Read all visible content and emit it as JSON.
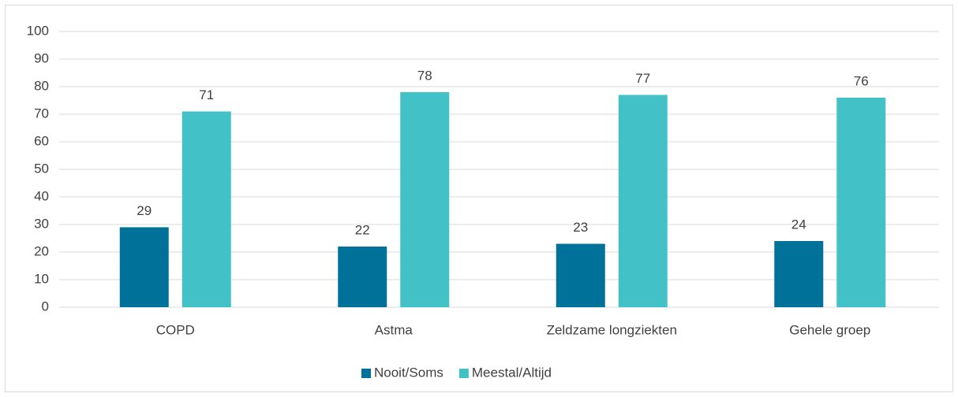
{
  "chart_data": {
    "type": "bar",
    "categories": [
      "COPD",
      "Astma",
      "Zeldzame longziekten",
      "Gehele groep"
    ],
    "series": [
      {
        "name": "Nooit/Soms",
        "color": "#00729a",
        "values": [
          29,
          22,
          23,
          24
        ]
      },
      {
        "name": "Meestal/Altijd",
        "color": "#42c1c6",
        "values": [
          71,
          78,
          77,
          76
        ]
      }
    ],
    "ylim": [
      0,
      100
    ],
    "yticks": [
      0,
      10,
      20,
      30,
      40,
      50,
      60,
      70,
      80,
      90,
      100
    ],
    "grid": true,
    "legend": "bottom"
  }
}
